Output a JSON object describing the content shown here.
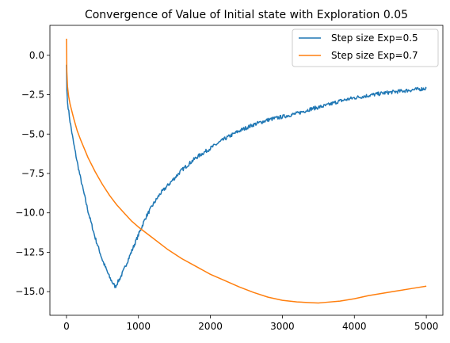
{
  "chart_data": {
    "type": "line",
    "title": "Convergence of Value of Initial state with Exploration 0.05",
    "xlabel": "",
    "ylabel": "",
    "xlim": [
      -230,
      5230
    ],
    "ylim": [
      -16.5,
      1.9
    ],
    "x_ticks": [
      0,
      1000,
      2000,
      3000,
      4000,
      5000
    ],
    "x_tick_labels": [
      "0",
      "1000",
      "2000",
      "3000",
      "4000",
      "5000"
    ],
    "y_ticks": [
      0.0,
      -2.5,
      -5.0,
      -7.5,
      -10.0,
      -12.5,
      -15.0
    ],
    "y_tick_labels": [
      "0.0",
      "−2.5",
      "−5.0",
      "−7.5",
      "−10.0",
      "−12.5",
      "−15.0"
    ],
    "grid": false,
    "legend_position": "upper right",
    "series": [
      {
        "name": "Step size Exp=0.5",
        "color": "#1f77b4",
        "noise": 0.12,
        "x": [
          0,
          5,
          15,
          50,
          100,
          150,
          200,
          300,
          400,
          500,
          600,
          650,
          680,
          700,
          750,
          800,
          900,
          1000,
          1100,
          1200,
          1300,
          1400,
          1500,
          1600,
          1700,
          1800,
          1900,
          2000,
          2200,
          2400,
          2600,
          2800,
          3000,
          3200,
          3400,
          3600,
          3800,
          4000,
          4200,
          4400,
          4600,
          4800,
          5000
        ],
        "y": [
          -0.6,
          -2.2,
          -3.0,
          -4.2,
          -5.6,
          -6.8,
          -7.9,
          -9.9,
          -11.6,
          -13.0,
          -14.1,
          -14.5,
          -14.7,
          -14.5,
          -14.1,
          -13.6,
          -12.5,
          -11.4,
          -10.3,
          -9.5,
          -8.8,
          -8.3,
          -7.8,
          -7.3,
          -6.9,
          -6.5,
          -6.2,
          -5.9,
          -5.3,
          -4.8,
          -4.4,
          -4.1,
          -3.9,
          -3.7,
          -3.4,
          -3.2,
          -2.9,
          -2.7,
          -2.55,
          -2.4,
          -2.3,
          -2.2,
          -2.1
        ]
      },
      {
        "name": "Step size Exp=0.7",
        "color": "#ff7f0e",
        "noise": 0.0,
        "x": [
          0,
          5,
          15,
          30,
          50,
          100,
          150,
          200,
          300,
          400,
          500,
          600,
          700,
          800,
          900,
          1000,
          1200,
          1400,
          1600,
          1800,
          2000,
          2200,
          2400,
          2600,
          2800,
          3000,
          3200,
          3400,
          3500,
          3600,
          3800,
          4000,
          4200,
          4400,
          4600,
          4800,
          5000
        ],
        "y": [
          1.05,
          -1.0,
          -2.0,
          -2.6,
          -3.1,
          -4.0,
          -4.8,
          -5.4,
          -6.5,
          -7.4,
          -8.2,
          -8.9,
          -9.5,
          -10.0,
          -10.5,
          -10.9,
          -11.6,
          -12.3,
          -12.9,
          -13.4,
          -13.9,
          -14.3,
          -14.7,
          -15.05,
          -15.35,
          -15.55,
          -15.65,
          -15.7,
          -15.72,
          -15.68,
          -15.6,
          -15.45,
          -15.25,
          -15.1,
          -14.95,
          -14.8,
          -14.65
        ]
      }
    ]
  }
}
